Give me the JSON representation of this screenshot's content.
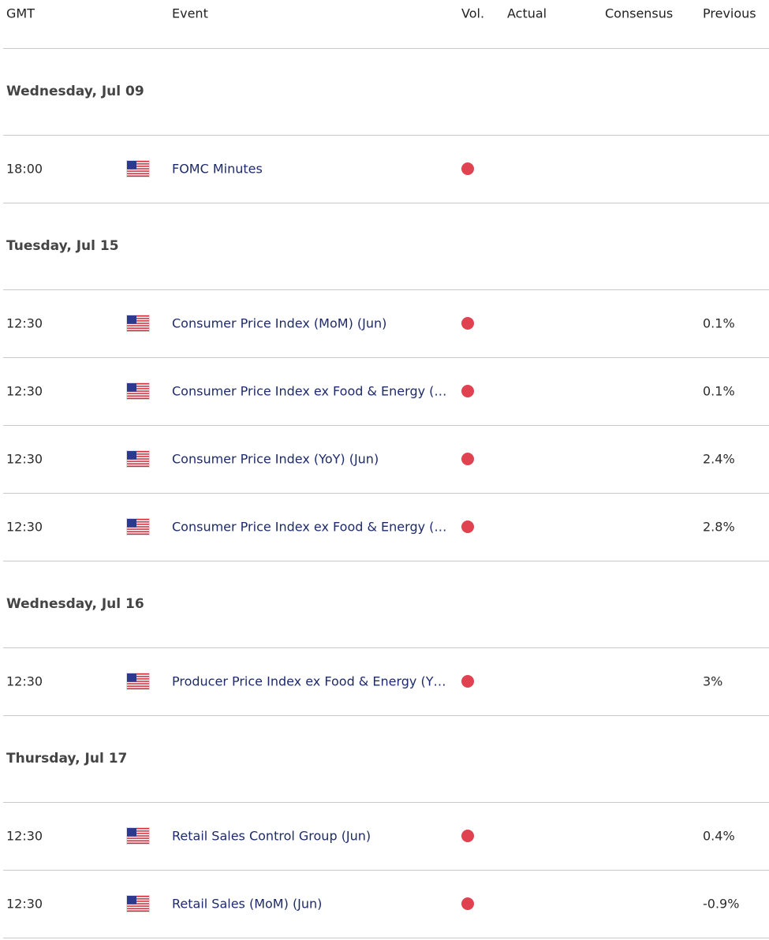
{
  "header": {
    "columns": [
      "GMT",
      "Event",
      "Vol.",
      "Actual",
      "Consensus",
      "Previous"
    ]
  },
  "days": [
    {
      "date": "Wednesday, Jul 09",
      "events": [
        {
          "time": "18:00",
          "event": "FOMC Minutes"
        }
      ]
    },
    {
      "date": "Tuesday, Jul 15",
      "events": [
        {
          "time": "12:30",
          "event": "Consumer Price Index (MoM) (Jun)",
          "previous": "0.1%"
        },
        {
          "time": "12:30",
          "event": "Consumer Price Index ex Food & Energy (…",
          "previous": "0.1%"
        },
        {
          "time": "12:30",
          "event": "Consumer Price Index (YoY) (Jun)",
          "previous": "2.4%"
        },
        {
          "time": "12:30",
          "event": "Consumer Price Index ex Food & Energy (…",
          "previous": "2.8%"
        }
      ]
    },
    {
      "date": "Wednesday, Jul 16",
      "events": [
        {
          "time": "12:30",
          "event": "Producer Price Index ex Food & Energy (Y…",
          "previous": "3%"
        }
      ]
    },
    {
      "date": "Thursday, Jul 17",
      "events": [
        {
          "time": "12:30",
          "event": "Retail Sales Control Group (Jun)",
          "previous": "0.4%"
        },
        {
          "time": "12:30",
          "event": "Retail Sales (MoM) (Jun)",
          "previous": "-0.9%"
        }
      ]
    }
  ]
}
